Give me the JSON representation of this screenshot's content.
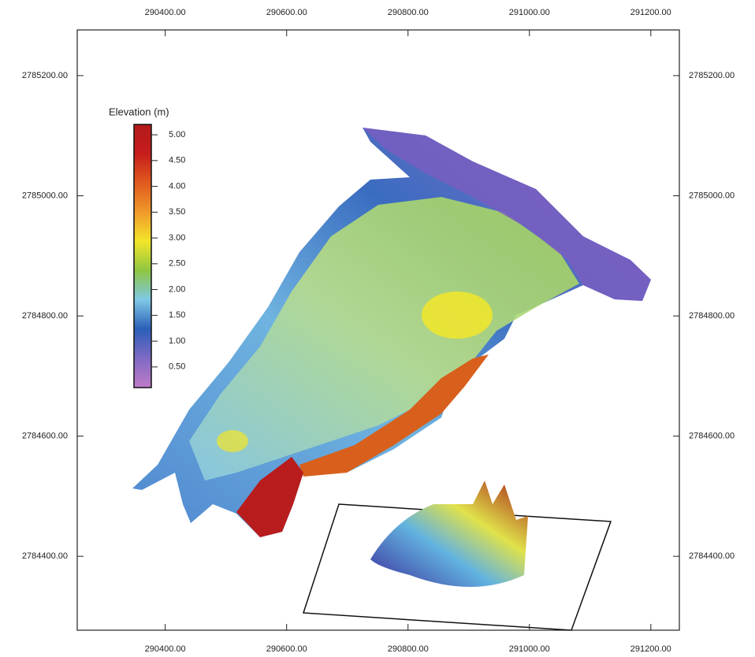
{
  "map": {
    "xlim": [
      290255,
      291247
    ],
    "ylim": [
      2784277,
      2785276
    ],
    "xticks": [
      {
        "value": 290400,
        "label": "290400.00"
      },
      {
        "value": 290600,
        "label": "290600.00"
      },
      {
        "value": 290800,
        "label": "290800.00"
      },
      {
        "value": 291000,
        "label": "291000.00"
      },
      {
        "value": 291200,
        "label": "291200.00"
      }
    ],
    "yticks": [
      {
        "value": 2785200,
        "label": "2785200.00"
      },
      {
        "value": 2785000,
        "label": "2785000.00"
      },
      {
        "value": 2784800,
        "label": "2784800.00"
      },
      {
        "value": 2784600,
        "label": "2784600.00"
      },
      {
        "value": 2784400,
        "label": "2784400.00"
      }
    ],
    "colorbar": {
      "title": "Elevation (m)",
      "lim": [
        0.1,
        5.2
      ],
      "ticks": [
        {
          "value": 0.5,
          "label": "0.50"
        },
        {
          "value": 1,
          "label": "1.00"
        },
        {
          "value": 1.5,
          "label": "1.50"
        },
        {
          "value": 2,
          "label": "2.00"
        },
        {
          "value": 2.5,
          "label": "2.50"
        },
        {
          "value": 3,
          "label": "3.00"
        },
        {
          "value": 3.5,
          "label": "3.50"
        },
        {
          "value": 4,
          "label": "4.00"
        },
        {
          "value": 4.5,
          "label": "4.50"
        },
        {
          "value": 5,
          "label": "5.00"
        }
      ],
      "colors": [
        "#c07ac8",
        "#7f6ac4",
        "#2b5fb8",
        "#7ec8e6",
        "#8fc641",
        "#f2e62a",
        "#f09a2a",
        "#e05a1e",
        "#c71d1d",
        "#b31a1a"
      ]
    }
  }
}
